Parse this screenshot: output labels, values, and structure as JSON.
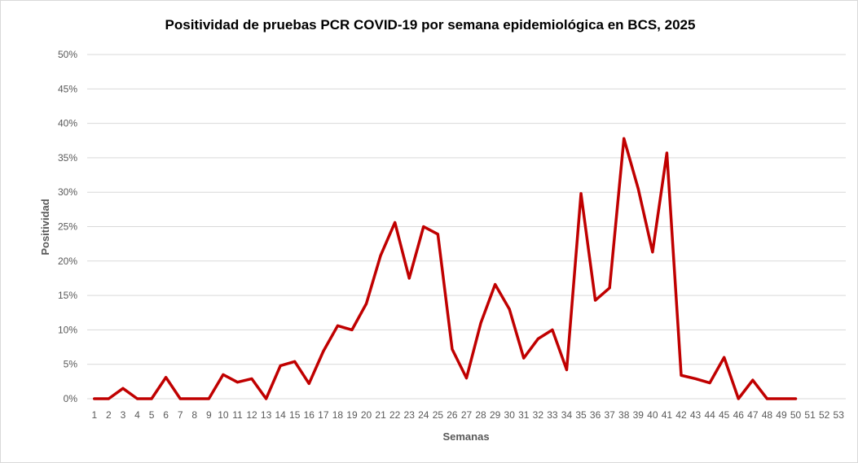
{
  "chart_data": {
    "type": "line",
    "title": "Positividad de pruebas PCR COVID-19 por semana epidemiológica en BCS, 2025",
    "xlabel": "Semanas",
    "ylabel": "Positividad",
    "ylim": [
      0,
      50
    ],
    "yticks": [
      "0%",
      "5%",
      "10%",
      "15%",
      "20%",
      "25%",
      "30%",
      "35%",
      "40%",
      "45%",
      "50%"
    ],
    "grid": true,
    "legend": "none",
    "color": "#C00000",
    "categories": [
      "1",
      "2",
      "3",
      "4",
      "5",
      "6",
      "7",
      "8",
      "9",
      "10",
      "11",
      "12",
      "13",
      "14",
      "15",
      "16",
      "17",
      "18",
      "19",
      "20",
      "21",
      "22",
      "23",
      "24",
      "25",
      "26",
      "27",
      "28",
      "29",
      "30",
      "31",
      "32",
      "33",
      "34",
      "35",
      "36",
      "37",
      "38",
      "39",
      "40",
      "41",
      "42",
      "43",
      "44",
      "45",
      "46",
      "47",
      "48",
      "49",
      "50",
      "51",
      "52",
      "53"
    ],
    "series": [
      {
        "values": [
          0,
          0,
          1.5,
          0,
          0,
          3.1,
          0,
          0,
          0,
          3.5,
          2.4,
          2.9,
          0,
          4.8,
          5.4,
          2.2,
          6.9,
          10.6,
          10.0,
          13.8,
          20.8,
          25.6,
          17.5,
          25.0,
          23.9,
          7.2,
          3.0,
          11.0,
          16.6,
          13.0,
          5.9,
          8.7,
          10.0,
          4.2,
          29.8,
          14.3,
          16.1,
          37.8,
          30.5,
          21.3,
          35.7,
          3.4,
          2.9,
          2.3,
          6.0,
          0,
          2.7,
          0,
          0,
          0,
          null,
          null,
          null
        ]
      }
    ]
  }
}
